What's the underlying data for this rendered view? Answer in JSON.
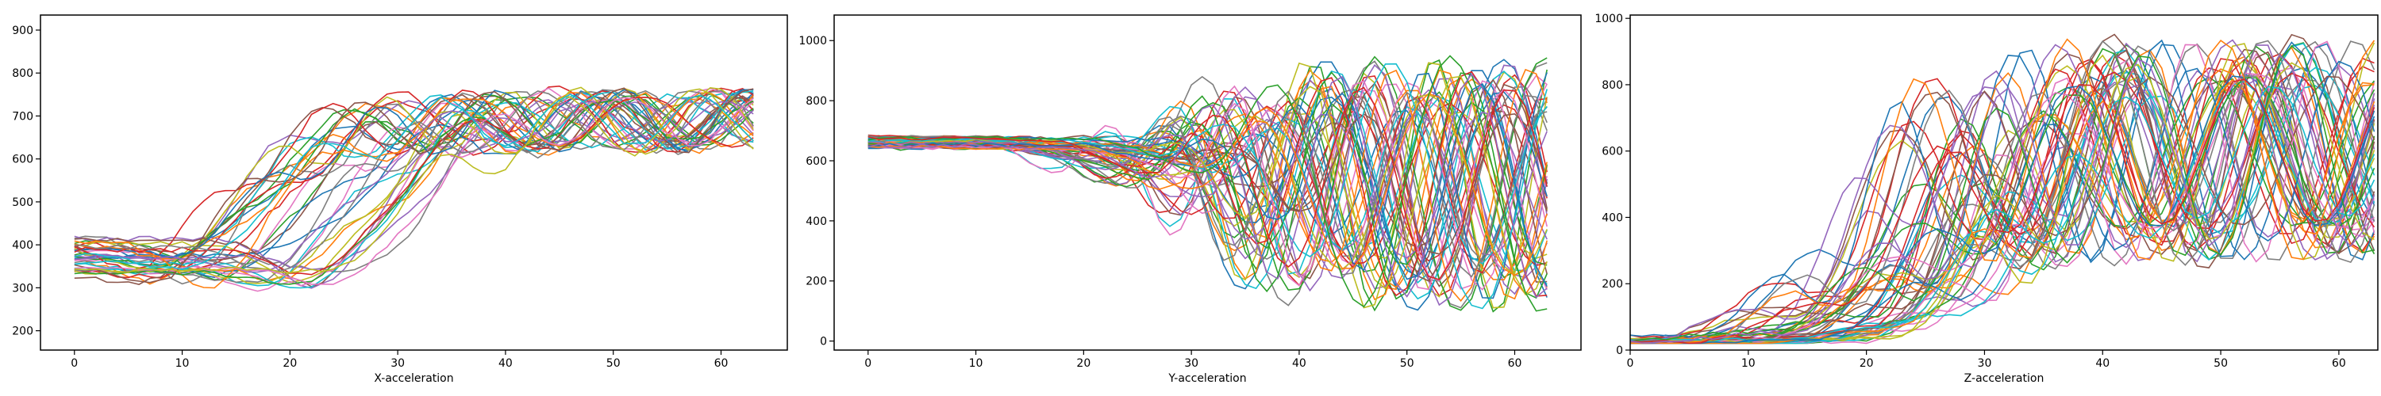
{
  "chart_data": [
    {
      "type": "line",
      "xlabel": "X-acceleration",
      "xlim": [
        -3.15,
        66.15
      ],
      "ylim": [
        155,
        935
      ],
      "xticks": [
        0,
        10,
        20,
        30,
        40,
        50,
        60
      ],
      "yticks": [
        200,
        300,
        400,
        500,
        600,
        700,
        800,
        900
      ],
      "x": "0..63 (integer sample index)",
      "n_series": 40,
      "series_profile": {
        "start": 370,
        "start_spread": 45,
        "dip": 285,
        "rise_center": 24,
        "rise_spread": 5,
        "plateau": 690,
        "wiggle": 80,
        "cross_lo": 0,
        "cross_hi": 0
      }
    },
    {
      "type": "line",
      "xlabel": "Y-acceleration",
      "xlim": [
        -3.15,
        66.15
      ],
      "ylim": [
        -30,
        1085
      ],
      "xticks": [
        0,
        10,
        20,
        30,
        40,
        50,
        60
      ],
      "yticks": [
        0,
        200,
        400,
        600,
        800,
        1000
      ],
      "x": "0..63 (integer sample index)",
      "n_series": 55,
      "series_profile": {
        "start": 660,
        "start_spread": 20,
        "dip": 600,
        "rise_center": 33,
        "rise_spread": 4,
        "plateau": 520,
        "wiggle": 430,
        "cross_lo": 0,
        "cross_hi": 0
      }
    },
    {
      "type": "line",
      "xlabel": "Z-acceleration",
      "xlim": [
        0,
        63.3
      ],
      "ylim": [
        0,
        1010
      ],
      "xticks": [
        0,
        10,
        20,
        30,
        40,
        50,
        60
      ],
      "yticks": [
        0,
        200,
        400,
        600,
        800,
        1000
      ],
      "x": "0..63 (integer sample index)",
      "n_series": 55,
      "series_profile": {
        "start": 20,
        "start_spread": 10,
        "dip": 0,
        "rise_center": 25,
        "rise_spread": 4,
        "plateau": 600,
        "wiggle": 360,
        "cross_lo": 0,
        "cross_hi": 0
      }
    }
  ],
  "colors": {
    "cycle": [
      "#1f77b4",
      "#ff7f0e",
      "#2ca02c",
      "#d62728",
      "#9467bd",
      "#8c564b",
      "#e377c2",
      "#7f7f7f",
      "#bcbd22",
      "#17becf"
    ],
    "axis": "#000000",
    "background": "#ffffff"
  }
}
